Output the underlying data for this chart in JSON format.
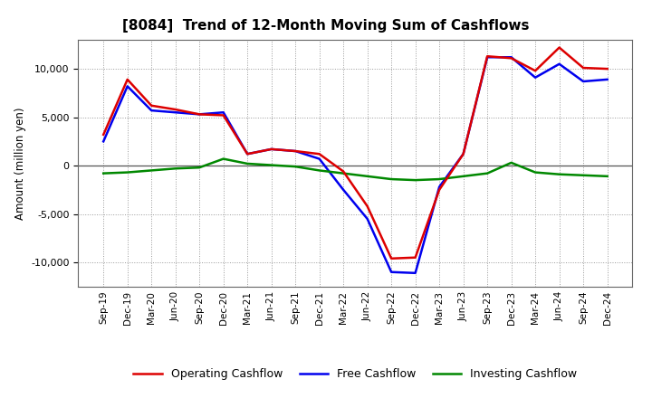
{
  "title": "[8084]  Trend of 12-Month Moving Sum of Cashflows",
  "ylabel": "Amount (million yen)",
  "background_color": "#ffffff",
  "plot_bg_color": "#ffffff",
  "grid_color": "#999999",
  "x_labels": [
    "Sep-19",
    "Dec-19",
    "Mar-20",
    "Jun-20",
    "Sep-20",
    "Dec-20",
    "Mar-21",
    "Jun-21",
    "Sep-21",
    "Dec-21",
    "Mar-22",
    "Jun-22",
    "Sep-22",
    "Dec-22",
    "Mar-23",
    "Jun-23",
    "Sep-23",
    "Dec-23",
    "Mar-24",
    "Jun-24",
    "Sep-24",
    "Dec-24"
  ],
  "operating": [
    3200,
    8900,
    6200,
    5800,
    5300,
    5200,
    1200,
    1700,
    1500,
    1200,
    -600,
    -4200,
    -9600,
    -9500,
    -2500,
    1200,
    11300,
    11100,
    9800,
    12200,
    10100,
    10000
  ],
  "investing": [
    -800,
    -700,
    -500,
    -300,
    -200,
    700,
    200,
    50,
    -100,
    -500,
    -800,
    -1100,
    -1400,
    -1500,
    -1400,
    -1100,
    -800,
    300,
    -700,
    -900,
    -1000,
    -1100
  ],
  "free": [
    2500,
    8200,
    5700,
    5500,
    5300,
    5500,
    1200,
    1700,
    1500,
    700,
    -2500,
    -5500,
    -11000,
    -11100,
    -2200,
    1200,
    11200,
    11200,
    9100,
    10500,
    8700,
    8900
  ],
  "ylim": [
    -12500,
    13000
  ],
  "yticks": [
    -10000,
    -5000,
    0,
    5000,
    10000
  ],
  "line_colors": {
    "operating": "#dd0000",
    "investing": "#008800",
    "free": "#0000ee"
  },
  "line_width": 1.8,
  "legend_labels": {
    "operating": "Operating Cashflow",
    "investing": "Investing Cashflow",
    "free": "Free Cashflow"
  }
}
